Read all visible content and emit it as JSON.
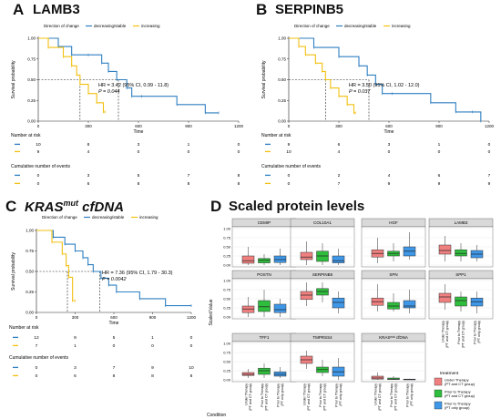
{
  "panels": [
    {
      "letter": "A",
      "title": "LAMB3",
      "legend_title": "Direction of change",
      "legend": [
        "decreasing/stable",
        "increasing"
      ],
      "y_axis_label": "Survival probability",
      "x_axis_label": "Time",
      "hr_text": "HR = 3.42 (95% CI, 0.99 - 11.8)",
      "p_text": "P = 0.044",
      "risk_title": "Number at risk",
      "risk_rows": [
        [
          "10",
          "8",
          "3",
          "1",
          "0"
        ],
        [
          "9",
          "4",
          "0",
          "0",
          "0"
        ]
      ],
      "cum_title": "Cumulative number of events",
      "cum_rows": [
        [
          "0",
          "3",
          "5",
          "7",
          "8"
        ],
        [
          "0",
          "6",
          "8",
          "8",
          "8"
        ]
      ]
    },
    {
      "letter": "B",
      "title": "SERPINB5",
      "legend_title": "Direction of change",
      "legend": [
        "decreasing/stable",
        "increasing"
      ],
      "y_axis_label": "Survival probability",
      "x_axis_label": "Time",
      "hr_text": "HR = 3.50 (95% CI, 1.02 - 12.0)",
      "p_text": "P = 0.037",
      "risk_title": "Number at risk",
      "risk_rows": [
        [
          "9",
          "6",
          "3",
          "1",
          "0"
        ],
        [
          "10",
          "4",
          "0",
          "0",
          "0"
        ]
      ],
      "cum_title": "Cumulative number of events",
      "cum_rows": [
        [
          "0",
          "2",
          "4",
          "6",
          "7"
        ],
        [
          "0",
          "7",
          "9",
          "9",
          "9"
        ]
      ]
    },
    {
      "letter": "C",
      "title": "KRAS",
      "title_sup": "mut",
      "title_suffix": " cfDNA",
      "legend_title": "Direction of change",
      "legend": [
        "decreasing/stable",
        "increasing"
      ],
      "y_axis_label": "Survival probability",
      "x_axis_label": "Time",
      "hr_text": "HR = 7.36 (95% CI, 1.79 - 30.3)",
      "p_text": "P = 0.0042",
      "risk_title": "Number at risk",
      "risk_rows": [
        [
          "12",
          "9",
          "5",
          "1",
          "0"
        ],
        [
          "7",
          "1",
          "0",
          "0",
          "0"
        ]
      ],
      "cum_title": "Cumulative number of events",
      "cum_rows": [
        [
          "0",
          "3",
          "7",
          "9",
          "10"
        ],
        [
          "0",
          "6",
          "8",
          "8",
          "8"
        ]
      ]
    }
  ],
  "colors": {
    "decreasing": "#2f7fc1",
    "increasing": "#f2c010",
    "median": "#222222",
    "under": "#f08080",
    "prior1": "#2ebd3c",
    "prior2": "#3f97e8"
  },
  "km_x_ticks": [
    "0",
    "300",
    "600",
    "900",
    "1200"
  ],
  "km_y_ticks": [
    "0.00",
    "0.25",
    "0.50",
    "0.75",
    "1.00"
  ],
  "chart_data": [
    {
      "type": "line",
      "step": true,
      "title": "LAMB3",
      "xlabel": "Time",
      "ylabel": "Survival probability",
      "xlim": [
        0,
        1200
      ],
      "ylim": [
        0,
        1
      ],
      "series": [
        {
          "name": "decreasing/stable",
          "x": [
            0,
            120,
            200,
            300,
            380,
            420,
            470,
            530,
            560,
            620,
            830,
            1000,
            1080
          ],
          "y": [
            1.0,
            0.9,
            0.8,
            0.8,
            0.7,
            0.6,
            0.5,
            0.4,
            0.3,
            0.3,
            0.2,
            0.1,
            0.1
          ]
        },
        {
          "name": "increasing",
          "x": [
            0,
            60,
            150,
            200,
            230,
            250,
            300,
            350,
            390,
            400
          ],
          "y": [
            1.0,
            0.889,
            0.778,
            0.667,
            0.556,
            0.444,
            0.333,
            0.222,
            0.111,
            0.111
          ]
        }
      ],
      "median_lines_x": [
        250,
        480
      ]
    },
    {
      "type": "line",
      "step": true,
      "title": "SERPINB5",
      "xlabel": "Time",
      "ylabel": "Survival probability",
      "xlim": [
        0,
        1200
      ],
      "ylim": [
        0,
        1
      ],
      "series": [
        {
          "name": "decreasing/stable",
          "x": [
            0,
            150,
            300,
            420,
            470,
            520,
            560,
            620,
            850,
            1000,
            1100,
            1150
          ],
          "y": [
            1.0,
            0.889,
            0.778,
            0.667,
            0.556,
            0.444,
            0.333,
            0.333,
            0.222,
            0.111,
            0.111,
            0.0
          ]
        },
        {
          "name": "increasing",
          "x": [
            0,
            60,
            100,
            160,
            200,
            220,
            250,
            300,
            350,
            390,
            400
          ],
          "y": [
            1.0,
            0.9,
            0.8,
            0.7,
            0.6,
            0.5,
            0.4,
            0.3,
            0.2,
            0.1,
            0.1
          ]
        }
      ],
      "median_lines_x": [
        220,
        480
      ]
    },
    {
      "type": "line",
      "step": true,
      "title": "KRASmut cfDNA",
      "xlabel": "Time",
      "ylabel": "Survival probability",
      "xlim": [
        0,
        1200
      ],
      "ylim": [
        0,
        1
      ],
      "series": [
        {
          "name": "decreasing/stable",
          "x": [
            0,
            130,
            220,
            300,
            360,
            400,
            440,
            500,
            560,
            620,
            800,
            1000,
            1200
          ],
          "y": [
            1.0,
            0.917,
            0.833,
            0.75,
            0.667,
            0.583,
            0.5,
            0.417,
            0.333,
            0.25,
            0.167,
            0.083,
            0.083
          ]
        },
        {
          "name": "increasing",
          "x": [
            0,
            120,
            200,
            230,
            250,
            280,
            300
          ],
          "y": [
            1.0,
            0.857,
            0.714,
            0.571,
            0.429,
            0.143,
            0.143
          ]
        }
      ],
      "median_lines_x": [
        240,
        490
      ]
    },
    {
      "type": "box",
      "title": "Scaled protein levels",
      "ylabel": "Scaled Value",
      "xlabel": "Condition",
      "y_ticks": [
        "0.00",
        "0.25",
        "0.50",
        "0.75",
        "1.00"
      ],
      "ylim": [
        0,
        1
      ],
      "groups": [
        "Under Therapy (PT and CT group)",
        "Prior to Therapy (PT and CT group)",
        "Prior to Therapy (PT only group)"
      ],
      "group_tick_labels": [
        "Under Therapy\n(PT and CT group)",
        "Prior to Therapy\n(PT and CT group)",
        "Prior to Therapy\n(PT only group)"
      ],
      "legend_title": "treatment",
      "legend_labels": [
        "Under Therapy\n(PT and CT group)",
        "Prior to Therapy\n(PT and CT group)",
        "Prior to Therapy\n(PT only group)"
      ],
      "facets": [
        {
          "name": "CEMIP",
          "boxes": [
            [
              0,
              0.05,
              0.12,
              0.25,
              0.5
            ],
            [
              0,
              0.06,
              0.13,
              0.18,
              0.3
            ],
            [
              0,
              0.07,
              0.15,
              0.25,
              0.45
            ]
          ]
        },
        {
          "name": "COL10A1",
          "boxes": [
            [
              0,
              0.15,
              0.22,
              0.35,
              0.65
            ],
            [
              0,
              0.1,
              0.25,
              0.38,
              0.6
            ],
            [
              0,
              0.06,
              0.12,
              0.25,
              0.45
            ]
          ]
        },
        {
          "name": "HGF",
          "boxes": [
            [
              0.05,
              0.22,
              0.32,
              0.42,
              0.75
            ],
            [
              0.1,
              0.25,
              0.32,
              0.38,
              0.6
            ],
            [
              0.15,
              0.25,
              0.38,
              0.5,
              0.9
            ]
          ]
        },
        {
          "name": "LAMB3",
          "boxes": [
            [
              0.1,
              0.3,
              0.4,
              0.55,
              0.8
            ],
            [
              0.1,
              0.25,
              0.32,
              0.42,
              0.6
            ],
            [
              0.1,
              0.2,
              0.3,
              0.4,
              0.55
            ]
          ]
        },
        {
          "name": "POSTN",
          "boxes": [
            [
              0,
              0.12,
              0.22,
              0.3,
              0.55
            ],
            [
              0,
              0.15,
              0.28,
              0.45,
              0.75
            ],
            [
              0,
              0.12,
              0.2,
              0.35,
              0.5
            ]
          ]
        },
        {
          "name": "SERPINB5",
          "boxes": [
            [
              0.3,
              0.48,
              0.6,
              0.7,
              0.95
            ],
            [
              0.4,
              0.6,
              0.7,
              0.78,
              0.95
            ],
            [
              0.1,
              0.25,
              0.4,
              0.52,
              0.7
            ]
          ]
        },
        {
          "name": "SPN",
          "boxes": [
            [
              0.15,
              0.32,
              0.42,
              0.52,
              0.9
            ],
            [
              0.15,
              0.22,
              0.3,
              0.4,
              0.65
            ],
            [
              0.1,
              0.25,
              0.3,
              0.45,
              0.75
            ]
          ]
        },
        {
          "name": "SPP1",
          "boxes": [
            [
              0.2,
              0.4,
              0.55,
              0.65,
              0.9
            ],
            [
              0.15,
              0.3,
              0.45,
              0.55,
              0.7
            ],
            [
              0.1,
              0.3,
              0.42,
              0.52,
              0.7
            ]
          ]
        },
        {
          "name": "TFF1",
          "boxes": [
            [
              0.05,
              0.12,
              0.15,
              0.2,
              0.3
            ],
            [
              0.05,
              0.15,
              0.25,
              0.32,
              0.45
            ],
            [
              0.05,
              0.1,
              0.15,
              0.22,
              0.35
            ]
          ]
        },
        {
          "name": "TMPRSS4",
          "boxes": [
            [
              0.3,
              0.45,
              0.55,
              0.65,
              0.8
            ],
            [
              0.1,
              0.2,
              0.28,
              0.35,
              0.55
            ],
            [
              0,
              0.1,
              0.22,
              0.35,
              0.6
            ]
          ]
        },
        {
          "name": "KRASmut cfDNA",
          "display": "KRASᵐᵘᵗ cfDNA",
          "boxes": [
            [
              0,
              0.02,
              0.05,
              0.1,
              0.2
            ],
            [
              0,
              0.01,
              0.02,
              0.05,
              0.1
            ],
            [
              0,
              0,
              0.01,
              0.02,
              0.03
            ]
          ]
        }
      ]
    }
  ],
  "panel_d": {
    "letter": "D",
    "title": "Scaled protein levels"
  }
}
